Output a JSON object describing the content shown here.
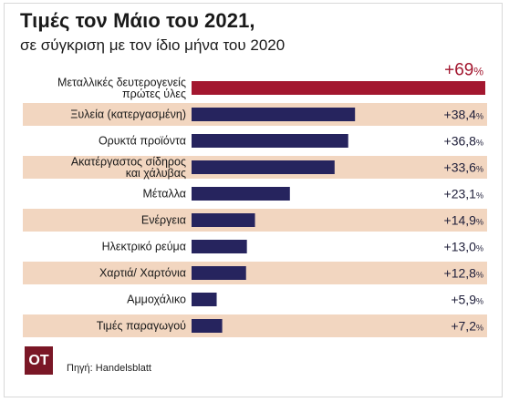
{
  "header": {
    "title": "Τιμές τον Μάιο του 2021,",
    "subtitle": "σε σύγκριση με τον ίδιο μήνα του 2020"
  },
  "footer": {
    "logo_text": "OT",
    "source": "Πηγή: Handelsblatt"
  },
  "colors": {
    "highlight_bar": "#a3172f",
    "bar": "#26245e",
    "stripe": "#f2d6c0",
    "highlight_value": "#a3172f",
    "value": "#1f1f3a"
  },
  "chart_data": {
    "type": "bar",
    "orientation": "horizontal",
    "categories": [
      "Μεταλλικές δευτερογενείς\nπρώτες ύλες",
      "Ξυλεία (κατεργασμένη)",
      "Ορυκτά προϊόντα",
      "Ακατέργαστος σίδηρος\nκαι χάλυβας",
      "Μέταλλα",
      "Ενέργεια",
      "Ηλεκτρικό ρεύμα",
      "Χαρτιά/ Χαρτόνια",
      "Αμμοχάλικο",
      "Τιμές παραγωγού"
    ],
    "values": [
      69,
      38.4,
      36.8,
      33.6,
      23.1,
      14.9,
      13.0,
      12.8,
      5.9,
      7.2
    ],
    "value_labels": [
      {
        "main": "+69",
        "unit": "%"
      },
      {
        "main": "+38,4",
        "unit": "%"
      },
      {
        "main": "+36,8",
        "unit": "%"
      },
      {
        "main": "+33,6",
        "unit": "%"
      },
      {
        "main": "+23,1",
        "unit": "%"
      },
      {
        "main": "+14,9",
        "unit": "%"
      },
      {
        "main": "+13,0",
        "unit": "%"
      },
      {
        "main": "+12,8",
        "unit": "%"
      },
      {
        "main": "+5,9",
        "unit": "%"
      },
      {
        "main": "+7,2",
        "unit": "%"
      }
    ],
    "highlight_index": 0,
    "xlim": [
      0,
      69
    ],
    "grid": false,
    "legend": "none"
  }
}
